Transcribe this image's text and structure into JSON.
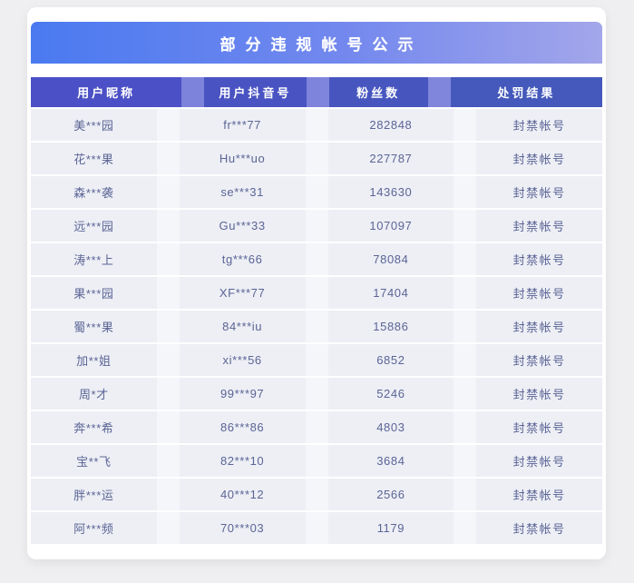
{
  "page": {
    "title": "部分违规帐号公示"
  },
  "table": {
    "columns": [
      "用户昵称",
      "用户抖音号",
      "粉丝数",
      "处罚结果"
    ],
    "rows": [
      {
        "nickname": "美***园",
        "douyin_id": "fr***77",
        "fans": "282848",
        "result": "封禁帐号"
      },
      {
        "nickname": "花***果",
        "douyin_id": "Hu***uo",
        "fans": "227787",
        "result": "封禁帐号"
      },
      {
        "nickname": "森***袭",
        "douyin_id": "se***31",
        "fans": "143630",
        "result": "封禁帐号"
      },
      {
        "nickname": "远***园",
        "douyin_id": "Gu***33",
        "fans": "107097",
        "result": "封禁帐号"
      },
      {
        "nickname": "涛***上",
        "douyin_id": "tg***66",
        "fans": "78084",
        "result": "封禁帐号"
      },
      {
        "nickname": "果***园",
        "douyin_id": "XF***77",
        "fans": "17404",
        "result": "封禁帐号"
      },
      {
        "nickname": "蜀***果",
        "douyin_id": "84***iu",
        "fans": "15886",
        "result": "封禁帐号"
      },
      {
        "nickname": "加**姐",
        "douyin_id": "xi***56",
        "fans": "6852",
        "result": "封禁帐号"
      },
      {
        "nickname": "周*才",
        "douyin_id": "99***97",
        "fans": "5246",
        "result": "封禁帐号"
      },
      {
        "nickname": "奔***希",
        "douyin_id": "86***86",
        "fans": "4803",
        "result": "封禁帐号"
      },
      {
        "nickname": "宝**飞",
        "douyin_id": "82***10",
        "fans": "3684",
        "result": "封禁帐号"
      },
      {
        "nickname": "胖***运",
        "douyin_id": "40***12",
        "fans": "2566",
        "result": "封禁帐号"
      },
      {
        "nickname": "阿***频",
        "douyin_id": "70***03",
        "fans": "1179",
        "result": "封禁帐号"
      }
    ]
  },
  "chart_data": {
    "type": "table",
    "title": "部分违规帐号公示",
    "columns": [
      "用户昵称",
      "用户抖音号",
      "粉丝数",
      "处罚结果"
    ],
    "rows": [
      [
        "美***园",
        "fr***77",
        282848,
        "封禁帐号"
      ],
      [
        "花***果",
        "Hu***uo",
        227787,
        "封禁帐号"
      ],
      [
        "森***袭",
        "se***31",
        143630,
        "封禁帐号"
      ],
      [
        "远***园",
        "Gu***33",
        107097,
        "封禁帐号"
      ],
      [
        "涛***上",
        "tg***66",
        78084,
        "封禁帐号"
      ],
      [
        "果***园",
        "XF***77",
        17404,
        "封禁帐号"
      ],
      [
        "蜀***果",
        "84***iu",
        15886,
        "封禁帐号"
      ],
      [
        "加**姐",
        "xi***56",
        6852,
        "封禁帐号"
      ],
      [
        "周*才",
        "99***97",
        5246,
        "封禁帐号"
      ],
      [
        "奔***希",
        "86***86",
        4803,
        "封禁帐号"
      ],
      [
        "宝**飞",
        "82***10",
        3684,
        "封禁帐号"
      ],
      [
        "胖***运",
        "40***12",
        2566,
        "封禁帐号"
      ],
      [
        "阿***频",
        "70***03",
        1179,
        "封禁帐号"
      ]
    ]
  },
  "colors": {
    "page_background": "#efeff1",
    "card_background": "#ffffff",
    "title_gradient_start": "#4a7af0",
    "title_gradient_end": "#a3a6ea",
    "header_cell": "#4a53c2",
    "header_divider": "#7e84da",
    "body_cell": "#edeff5",
    "body_text": "#5b6495",
    "title_text": "#ffffff"
  }
}
